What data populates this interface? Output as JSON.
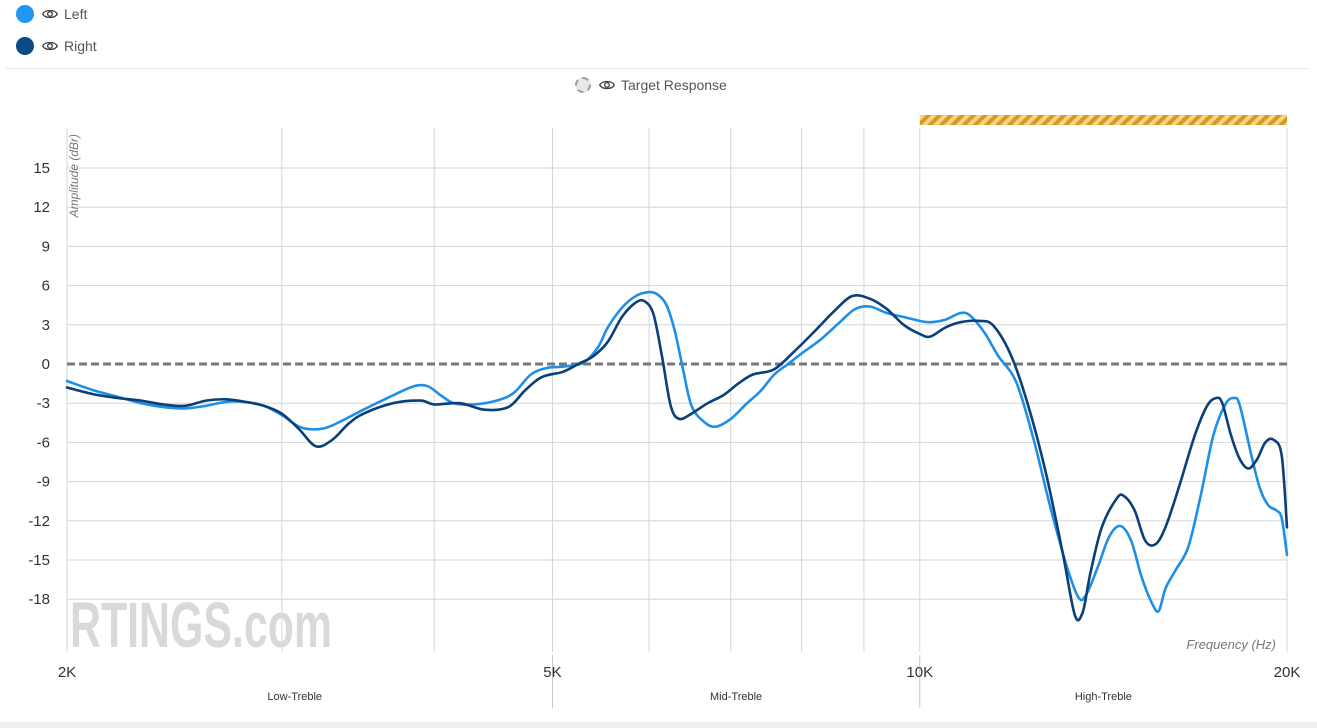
{
  "legend": {
    "series": [
      {
        "label": "Left",
        "color": "#2196f3",
        "icon": "eye-icon"
      },
      {
        "label": "Right",
        "color": "#0d4a85",
        "icon": "eye-icon"
      }
    ],
    "target": {
      "label": "Target Response",
      "icon": "eye-icon"
    }
  },
  "watermark": "RTINGS.com",
  "colors": {
    "left": "#1e8fe6",
    "right": "#0b3f77",
    "target": "#777777",
    "highlight": "#e0a52a",
    "grid": "#d6d6d6"
  },
  "chart_data": {
    "type": "line",
    "title": "",
    "xlabel": "Frequency (Hz)",
    "ylabel": "Amplitude (dBr)",
    "x_scale": "log",
    "xlim": [
      2000,
      20000
    ],
    "ylim": [
      -22,
      18
    ],
    "x_ticks": [
      {
        "value": 2000,
        "label": "2K"
      },
      {
        "value": 5000,
        "label": "5K"
      },
      {
        "value": 10000,
        "label": "10K"
      },
      {
        "value": 20000,
        "label": "20K"
      }
    ],
    "x_minor_grid": [
      3000,
      4000,
      6000,
      7000,
      8000,
      9000
    ],
    "y_ticks": [
      15,
      12,
      9,
      6,
      3,
      0,
      -3,
      -6,
      -9,
      -12,
      -15,
      -18
    ],
    "bands": [
      {
        "label": "Low-Treble",
        "from": 2000,
        "to": 5000
      },
      {
        "label": "Mid-Treble",
        "from": 5000,
        "to": 10000
      },
      {
        "label": "High-Treble",
        "from": 10000,
        "to": 20000
      }
    ],
    "highlight_range": [
      10000,
      20000
    ],
    "series": [
      {
        "name": "Target Response",
        "points": [
          [
            2000,
            0
          ],
          [
            20000,
            0
          ]
        ]
      },
      {
        "name": "Left",
        "points": [
          [
            2000,
            -1.3
          ],
          [
            2100,
            -2.0
          ],
          [
            2200,
            -2.5
          ],
          [
            2300,
            -3.0
          ],
          [
            2400,
            -3.3
          ],
          [
            2500,
            -3.4
          ],
          [
            2600,
            -3.2
          ],
          [
            2700,
            -2.9
          ],
          [
            2800,
            -2.9
          ],
          [
            2900,
            -3.2
          ],
          [
            3000,
            -3.9
          ],
          [
            3100,
            -4.8
          ],
          [
            3200,
            -5.0
          ],
          [
            3300,
            -4.7
          ],
          [
            3500,
            -3.5
          ],
          [
            3700,
            -2.4
          ],
          [
            3850,
            -1.7
          ],
          [
            3950,
            -1.7
          ],
          [
            4050,
            -2.4
          ],
          [
            4150,
            -3.0
          ],
          [
            4300,
            -3.1
          ],
          [
            4500,
            -2.8
          ],
          [
            4650,
            -2.2
          ],
          [
            4800,
            -0.8
          ],
          [
            4950,
            -0.3
          ],
          [
            5100,
            -0.2
          ],
          [
            5300,
            0.1
          ],
          [
            5450,
            1.3
          ],
          [
            5550,
            2.8
          ],
          [
            5700,
            4.3
          ],
          [
            5850,
            5.2
          ],
          [
            6000,
            5.5
          ],
          [
            6100,
            5.3
          ],
          [
            6200,
            4.5
          ],
          [
            6300,
            2.5
          ],
          [
            6400,
            -0.5
          ],
          [
            6500,
            -3.2
          ],
          [
            6650,
            -4.4
          ],
          [
            6800,
            -4.8
          ],
          [
            7000,
            -4.2
          ],
          [
            7200,
            -3.1
          ],
          [
            7400,
            -2.1
          ],
          [
            7600,
            -0.8
          ],
          [
            7800,
            0.0
          ],
          [
            8000,
            0.8
          ],
          [
            8300,
            1.9
          ],
          [
            8600,
            3.2
          ],
          [
            8850,
            4.2
          ],
          [
            9100,
            4.4
          ],
          [
            9400,
            3.9
          ],
          [
            9700,
            3.6
          ],
          [
            10000,
            3.3
          ],
          [
            10200,
            3.2
          ],
          [
            10500,
            3.4
          ],
          [
            10800,
            3.9
          ],
          [
            11000,
            3.7
          ],
          [
            11300,
            2.4
          ],
          [
            11600,
            0.6
          ],
          [
            12000,
            -1.4
          ],
          [
            12400,
            -5.8
          ],
          [
            12800,
            -11.0
          ],
          [
            13200,
            -15.5
          ],
          [
            13500,
            -17.9
          ],
          [
            13700,
            -17.6
          ],
          [
            14000,
            -15.5
          ],
          [
            14300,
            -13.2
          ],
          [
            14600,
            -12.4
          ],
          [
            14900,
            -13.5
          ],
          [
            15200,
            -16.3
          ],
          [
            15500,
            -18.3
          ],
          [
            15700,
            -18.9
          ],
          [
            15900,
            -17.2
          ],
          [
            16200,
            -15.8
          ],
          [
            16600,
            -14.0
          ],
          [
            17000,
            -10.0
          ],
          [
            17400,
            -5.5
          ],
          [
            17800,
            -3.1
          ],
          [
            18100,
            -2.6
          ],
          [
            18300,
            -3.2
          ],
          [
            18700,
            -7.0
          ],
          [
            19000,
            -9.5
          ],
          [
            19300,
            -10.8
          ],
          [
            19600,
            -11.2
          ],
          [
            19800,
            -11.8
          ],
          [
            20000,
            -14.6
          ]
        ]
      },
      {
        "name": "Right",
        "points": [
          [
            2000,
            -1.8
          ],
          [
            2100,
            -2.3
          ],
          [
            2200,
            -2.6
          ],
          [
            2300,
            -2.8
          ],
          [
            2400,
            -3.1
          ],
          [
            2500,
            -3.2
          ],
          [
            2600,
            -2.8
          ],
          [
            2700,
            -2.7
          ],
          [
            2800,
            -2.9
          ],
          [
            2900,
            -3.2
          ],
          [
            3000,
            -3.8
          ],
          [
            3100,
            -5.0
          ],
          [
            3200,
            -6.3
          ],
          [
            3300,
            -5.8
          ],
          [
            3400,
            -4.6
          ],
          [
            3500,
            -3.8
          ],
          [
            3700,
            -3.0
          ],
          [
            3900,
            -2.8
          ],
          [
            4000,
            -3.1
          ],
          [
            4200,
            -3.0
          ],
          [
            4400,
            -3.5
          ],
          [
            4600,
            -3.3
          ],
          [
            4750,
            -2.0
          ],
          [
            4900,
            -1.0
          ],
          [
            5100,
            -0.6
          ],
          [
            5250,
            0.0
          ],
          [
            5400,
            0.6
          ],
          [
            5550,
            1.7
          ],
          [
            5700,
            3.6
          ],
          [
            5850,
            4.7
          ],
          [
            5950,
            4.8
          ],
          [
            6050,
            3.8
          ],
          [
            6150,
            0.5
          ],
          [
            6250,
            -3.2
          ],
          [
            6350,
            -4.2
          ],
          [
            6500,
            -3.8
          ],
          [
            6700,
            -3.0
          ],
          [
            6900,
            -2.4
          ],
          [
            7100,
            -1.5
          ],
          [
            7300,
            -0.8
          ],
          [
            7600,
            -0.4
          ],
          [
            7900,
            1.0
          ],
          [
            8200,
            2.5
          ],
          [
            8500,
            4.0
          ],
          [
            8800,
            5.2
          ],
          [
            9100,
            5.0
          ],
          [
            9400,
            4.2
          ],
          [
            9700,
            3.0
          ],
          [
            10000,
            2.3
          ],
          [
            10200,
            2.1
          ],
          [
            10500,
            2.8
          ],
          [
            10800,
            3.2
          ],
          [
            11200,
            3.3
          ],
          [
            11500,
            2.9
          ],
          [
            11900,
            0.5
          ],
          [
            12300,
            -3.5
          ],
          [
            12700,
            -8.5
          ],
          [
            13100,
            -14.5
          ],
          [
            13400,
            -19.2
          ],
          [
            13600,
            -19.0
          ],
          [
            13800,
            -16.0
          ],
          [
            14100,
            -12.5
          ],
          [
            14500,
            -10.3
          ],
          [
            14700,
            -10.1
          ],
          [
            15000,
            -11.2
          ],
          [
            15300,
            -13.5
          ],
          [
            15600,
            -13.8
          ],
          [
            15900,
            -12.5
          ],
          [
            16300,
            -9.5
          ],
          [
            16800,
            -5.5
          ],
          [
            17200,
            -3.2
          ],
          [
            17500,
            -2.6
          ],
          [
            17700,
            -3.0
          ],
          [
            18000,
            -5.5
          ],
          [
            18300,
            -7.3
          ],
          [
            18600,
            -8.0
          ],
          [
            18900,
            -7.3
          ],
          [
            19200,
            -6.0
          ],
          [
            19500,
            -5.8
          ],
          [
            19800,
            -7.0
          ],
          [
            20000,
            -12.5
          ]
        ]
      }
    ]
  }
}
